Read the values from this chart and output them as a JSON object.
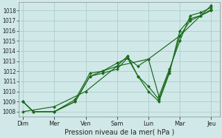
{
  "xlabel": "Pression niveau de la mer( hPa )",
  "bg_color": "#d0e8e8",
  "grid_color": "#aacccc",
  "line_color": "#1a6b1a",
  "ylim": [
    1007.5,
    1018.8
  ],
  "xlim": [
    -0.2,
    9.4
  ],
  "tick_labels": [
    "Dim",
    "Mer",
    "Ven",
    "Sam",
    "Lun",
    "Mar",
    "Jeu"
  ],
  "tick_positions": [
    0,
    1.5,
    3.0,
    4.5,
    6.0,
    7.5,
    9.0
  ],
  "yticks": [
    1008,
    1009,
    1010,
    1011,
    1012,
    1013,
    1014,
    1015,
    1016,
    1017,
    1018
  ],
  "series": [
    {
      "x": [
        0,
        1.5,
        3.0,
        4.5,
        6.0,
        7.5,
        9.0
      ],
      "y": [
        1008.0,
        1008.5,
        1010.0,
        1012.5,
        1013.2,
        1015.5,
        1018.5
      ]
    },
    {
      "x": [
        0,
        0.5,
        1.5,
        2.5,
        3.2,
        3.8,
        4.5,
        5.0,
        5.5,
        6.0,
        6.5,
        7.0,
        7.5,
        8.0,
        8.5,
        9.0
      ],
      "y": [
        1009.0,
        1008.0,
        1008.0,
        1009.0,
        1011.5,
        1012.0,
        1012.8,
        1013.3,
        1012.5,
        1013.2,
        1009.5,
        1012.2,
        1015.0,
        1017.5,
        1017.8,
        1018.3
      ]
    },
    {
      "x": [
        0,
        0.5,
        1.5,
        2.5,
        3.2,
        3.8,
        4.5,
        5.0,
        5.5,
        6.0,
        6.5,
        7.0,
        7.5,
        8.0,
        8.5,
        9.0
      ],
      "y": [
        1009.0,
        1008.0,
        1008.0,
        1009.2,
        1011.8,
        1012.0,
        1012.5,
        1013.5,
        1011.5,
        1010.5,
        1009.2,
        1012.0,
        1015.5,
        1017.0,
        1017.5,
        1018.1
      ]
    },
    {
      "x": [
        0,
        0.5,
        1.5,
        2.5,
        3.2,
        3.8,
        4.5,
        5.0,
        5.5,
        6.0,
        6.5,
        7.0,
        7.5,
        8.0,
        8.5,
        9.0
      ],
      "y": [
        1009.0,
        1008.0,
        1008.0,
        1009.0,
        1011.5,
        1011.8,
        1012.2,
        1013.3,
        1011.5,
        1010.0,
        1009.0,
        1011.8,
        1016.0,
        1017.2,
        1017.5,
        1018.0
      ]
    }
  ],
  "figsize": [
    3.2,
    2.0
  ],
  "dpi": 100
}
